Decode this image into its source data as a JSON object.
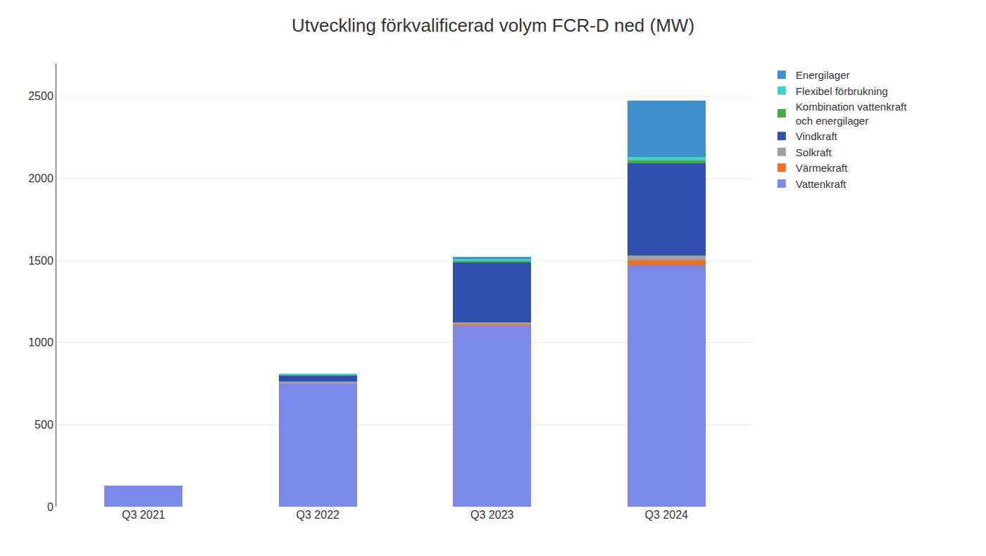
{
  "chart_data": {
    "type": "bar",
    "stacked": true,
    "title": "Utveckling förkvalificerad volym FCR-D ned (MW)",
    "categories": [
      "Q3 2021",
      "Q3 2022",
      "Q3 2023",
      "Q3 2024"
    ],
    "series": [
      {
        "name": "Vattenkraft",
        "color": "#7b88e8",
        "values": [
          130,
          750,
          1100,
          1470
        ]
      },
      {
        "name": "Värmekraft",
        "color": "#f07020",
        "values": [
          0,
          0,
          12,
          30
        ]
      },
      {
        "name": "Solkraft",
        "color": "#a0a0a0",
        "values": [
          0,
          15,
          10,
          30
        ]
      },
      {
        "name": "Vindkraft",
        "color": "#3050b0",
        "values": [
          0,
          35,
          365,
          560
        ]
      },
      {
        "name": "Kombination vattenkraft\noch energilager",
        "color": "#4aaa40",
        "values": [
          0,
          5,
          10,
          18
        ]
      },
      {
        "name": "Flexibel förbrukning",
        "color": "#40d0c8",
        "values": [
          0,
          5,
          10,
          22
        ]
      },
      {
        "name": "Energilager",
        "color": "#4090d0",
        "values": [
          0,
          0,
          15,
          345
        ]
      }
    ],
    "ylim": [
      0,
      2700
    ],
    "yticks": [
      0,
      500,
      1000,
      1500,
      2000,
      2500
    ],
    "grid": true,
    "legend": "right"
  }
}
